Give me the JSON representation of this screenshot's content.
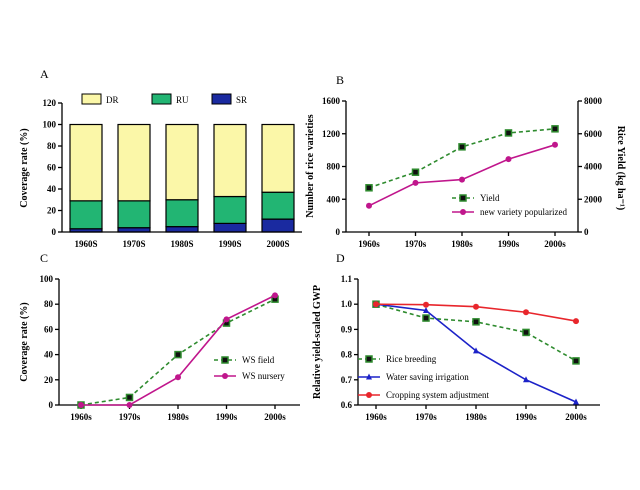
{
  "chart_data": [
    {
      "panel": "A",
      "type": "bar",
      "stacked": true,
      "categories": [
        "1960S",
        "1970S",
        "1980S",
        "1990S",
        "2000S"
      ],
      "ylabel": "Coverage rate (%)",
      "ylim": [
        0,
        120
      ],
      "yticks": [
        0,
        20,
        40,
        60,
        80,
        100,
        120
      ],
      "legend_position": "top",
      "series": [
        {
          "name": "SR",
          "color": "#1a2aa0",
          "values": [
            3,
            4,
            5,
            8,
            12
          ]
        },
        {
          "name": "RU",
          "color": "#22b573",
          "values": [
            26,
            25,
            25,
            25,
            25
          ]
        },
        {
          "name": "DR",
          "color": "#fbf7a8",
          "values": [
            71,
            71,
            70,
            67,
            63
          ]
        }
      ]
    },
    {
      "panel": "B",
      "type": "line",
      "categories": [
        "1960s",
        "1970s",
        "1980s",
        "1990s",
        "2000s"
      ],
      "ylabel": "Number of rice varieties",
      "ylim": [
        0,
        1600
      ],
      "yticks": [
        0,
        400,
        800,
        1200,
        1600
      ],
      "y2label": "Rice Yield (kg ha⁻¹)",
      "y2lim": [
        0,
        8000
      ],
      "y2ticks": [
        0,
        2000,
        4000,
        6000,
        8000
      ],
      "legend_position": "bottom-right",
      "series": [
        {
          "name": "Yield",
          "axis": "right",
          "style": "dashed",
          "marker": "square",
          "color": "#2e8b2e",
          "values": [
            2700,
            3650,
            5200,
            6050,
            6300
          ]
        },
        {
          "name": "new variety popularized",
          "axis": "left",
          "style": "solid",
          "marker": "circle",
          "color": "#c0168c",
          "values": [
            320,
            600,
            640,
            890,
            1065
          ]
        }
      ]
    },
    {
      "panel": "C",
      "type": "line",
      "categories": [
        "1960s",
        "1970s",
        "1980s",
        "1990s",
        "2000s"
      ],
      "ylabel": "Coverage rate (%)",
      "ylim": [
        0,
        100
      ],
      "yticks": [
        0,
        20,
        40,
        60,
        80,
        100
      ],
      "legend_position": "middle-right",
      "series": [
        {
          "name": "WS field",
          "style": "dashed",
          "marker": "square",
          "color": "#2e8b2e",
          "values": [
            0,
            6,
            40,
            65,
            84
          ]
        },
        {
          "name": "WS nursery",
          "style": "solid",
          "marker": "circle",
          "color": "#c0168c",
          "values": [
            0,
            0,
            22,
            68,
            87
          ]
        }
      ]
    },
    {
      "panel": "D",
      "type": "line",
      "categories": [
        "1960s",
        "1970s",
        "1980s",
        "1990s",
        "2000s"
      ],
      "ylabel": "Relative yield-scaled GWP",
      "ylim": [
        0.6,
        1.1
      ],
      "yticks": [
        0.6,
        0.7,
        0.8,
        0.9,
        1.0,
        1.1
      ],
      "ytick_labels": [
        "0.6",
        "0.7",
        "0.8",
        "0.9",
        "1.0",
        "1.1"
      ],
      "legend_position": "bottom-left",
      "series": [
        {
          "name": "Rice breeding",
          "style": "dashed",
          "marker": "square",
          "color": "#2e8b2e",
          "values": [
            1.0,
            0.945,
            0.93,
            0.888,
            0.775
          ]
        },
        {
          "name": "Water saving irrigation",
          "style": "solid",
          "marker": "triangle",
          "color": "#1c22c8",
          "values": [
            1.0,
            0.975,
            0.815,
            0.7,
            0.612
          ]
        },
        {
          "name": "Cropping system adjustment",
          "style": "solid",
          "marker": "circle",
          "color": "#e8262c",
          "values": [
            1.0,
            0.998,
            0.99,
            0.968,
            0.933
          ]
        }
      ]
    }
  ]
}
